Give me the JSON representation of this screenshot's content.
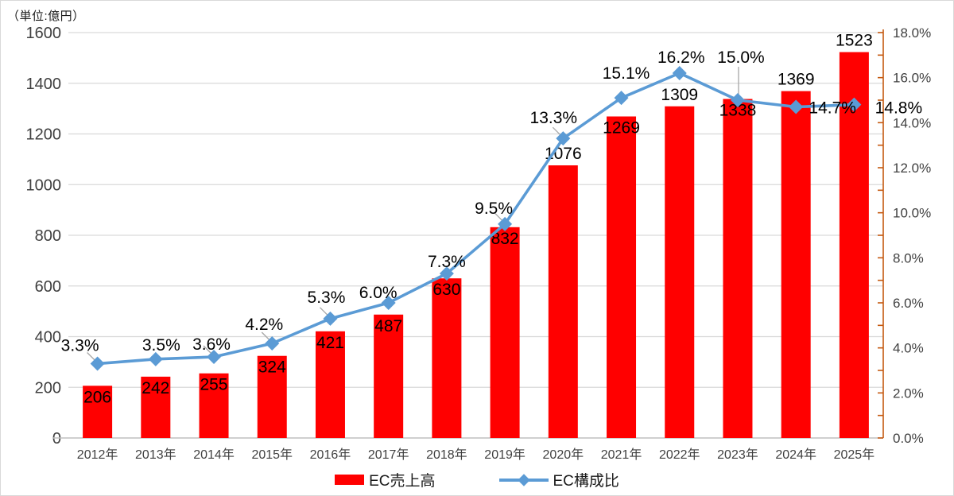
{
  "unit_label": "（単位:億円）",
  "chart_data": {
    "type": "bar",
    "subtype": "combo-bar-line",
    "title": "",
    "unit_label": "（単位:億円）",
    "categories": [
      "2012年",
      "2013年",
      "2014年",
      "2015年",
      "2016年",
      "2017年",
      "2018年",
      "2019年",
      "2020年",
      "2021年",
      "2022年",
      "2023年",
      "2024年",
      "2025年"
    ],
    "series": [
      {
        "name": "EC売上高",
        "type": "bar",
        "axis": "left",
        "color": "#FF0000",
        "values": [
          206,
          242,
          255,
          324,
          421,
          487,
          630,
          832,
          1076,
          1269,
          1309,
          1338,
          1369,
          1523
        ],
        "value_labels": [
          "206",
          "242",
          "255",
          "324",
          "421",
          "487",
          "630",
          "832",
          "1076",
          "1269",
          "1309",
          "1338",
          "1369",
          "1523"
        ],
        "value_label_placement": [
          "inside",
          "inside",
          "inside",
          "inside",
          "inside",
          "inside",
          "inside",
          "inside",
          "above",
          "inside",
          "above",
          "inside",
          "above",
          "above"
        ]
      },
      {
        "name": "EC構成比",
        "type": "line",
        "axis": "right",
        "color": "#5B9BD5",
        "marker": "diamond",
        "values": [
          3.3,
          3.5,
          3.6,
          4.2,
          5.3,
          6.0,
          7.3,
          9.5,
          13.3,
          15.1,
          16.2,
          15.0,
          14.7,
          14.8
        ],
        "point_labels": [
          "3.3%",
          "3.5%",
          "3.6%",
          "4.2%",
          "5.3%",
          "6.0%",
          "7.3%",
          "9.5%",
          "13.3%",
          "15.1%",
          "16.2%",
          "15.0%",
          "14.7%",
          "14.8%"
        ],
        "label_offsets": [
          [
            -22,
            -16
          ],
          [
            7,
            -11
          ],
          [
            -3,
            -9
          ],
          [
            -10,
            -17
          ],
          [
            -5,
            -20
          ],
          [
            -13,
            -6
          ],
          [
            0,
            -8
          ],
          [
            -14,
            -13
          ],
          [
            -12,
            -19
          ],
          [
            6,
            -24
          ],
          [
            2,
            -13
          ],
          [
            4,
            -47
          ],
          [
            46,
            8
          ],
          [
            56,
            11
          ]
        ],
        "label_leaders": [
          "diag",
          null,
          "diag",
          "diag",
          "diag",
          null,
          null,
          "diag",
          "diag",
          null,
          null,
          "vert",
          null,
          null
        ]
      }
    ],
    "left_axis": {
      "min": 0,
      "max": 1600,
      "step": 200,
      "tick_labels": [
        "0",
        "200",
        "400",
        "600",
        "800",
        "1000",
        "1200",
        "1400",
        "1600"
      ]
    },
    "right_axis": {
      "min": 0,
      "max": 18,
      "step": 2,
      "minor_step": 1,
      "color": "#C55A11",
      "tick_labels": [
        "0.0%",
        "2.0%",
        "4.0%",
        "6.0%",
        "8.0%",
        "10.0%",
        "12.0%",
        "14.0%",
        "16.0%",
        "18.0%"
      ]
    },
    "grid": true,
    "legend_position": "bottom",
    "legend": [
      {
        "label": "EC売上高",
        "swatch": "bar",
        "color": "#FF0000"
      },
      {
        "label": "EC構成比",
        "swatch": "line-diamond",
        "color": "#5B9BD5"
      }
    ],
    "colors": {
      "grid": "#D9D9D9",
      "axis_line": "#BFBFBF",
      "axis_text": "#404040",
      "data_label": "#000000",
      "leader": "#A6A6A6",
      "background": "#FFFFFF"
    }
  }
}
